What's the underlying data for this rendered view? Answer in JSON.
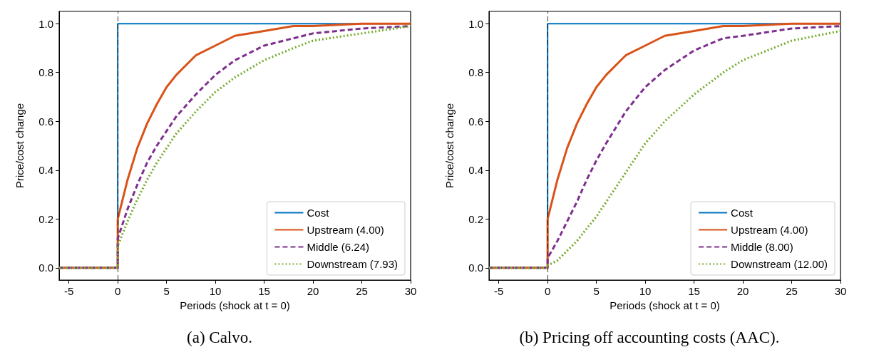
{
  "chart_data": [
    {
      "type": "line",
      "title": "(a) Calvo.",
      "xlabel": "Periods (shock at t = 0)",
      "ylabel": "Price/cost change",
      "xlim": [
        -6,
        30
      ],
      "xticks": [
        -5,
        0,
        5,
        10,
        15,
        20,
        25,
        30
      ],
      "ylim": [
        -0.05,
        1.05
      ],
      "yticks": [
        {
          "value": 0,
          "label": "0.0"
        },
        {
          "value": 0.2,
          "label": "0.2"
        },
        {
          "value": 0.4,
          "label": "0.4"
        },
        {
          "value": 0.6,
          "label": "0.6"
        },
        {
          "value": 0.8,
          "label": "0.8"
        },
        {
          "value": 1,
          "label": "1.0"
        }
      ],
      "grid": false,
      "legend": "bottom right",
      "marker": "none",
      "ref_lines": [
        {
          "axis": "x",
          "value": 0,
          "color": "#000000",
          "line_style": "dashed"
        }
      ],
      "series": [
        {
          "name": "Cost",
          "color": "#0072bd",
          "line_style": "solid",
          "x": [
            -6,
            0,
            0,
            30
          ],
          "values": [
            0,
            0,
            1,
            1
          ]
        },
        {
          "name": "Upstream (4.00)",
          "color": "#d95319",
          "line_style": "solid",
          "x": [
            -6,
            0,
            0,
            1,
            2,
            3,
            4,
            5,
            6,
            8,
            10,
            12,
            15,
            18,
            20,
            25,
            30
          ],
          "values": [
            0,
            0,
            0.2,
            0.36,
            0.49,
            0.59,
            0.67,
            0.74,
            0.79,
            0.87,
            0.91,
            0.95,
            0.97,
            0.99,
            0.99,
            1.0,
            1.0
          ]
        },
        {
          "name": "Middle (6.24)",
          "color": "#7e2f8e",
          "line_style": "dashed",
          "x": [
            -6,
            0,
            0,
            1,
            2,
            3,
            4,
            5,
            6,
            8,
            10,
            12,
            15,
            18,
            20,
            25,
            30
          ],
          "values": [
            0,
            0,
            0.12,
            0.24,
            0.34,
            0.43,
            0.5,
            0.56,
            0.62,
            0.71,
            0.79,
            0.85,
            0.91,
            0.94,
            0.96,
            0.98,
            0.99
          ]
        },
        {
          "name": "Downstream (7.93)",
          "color": "#77ac30",
          "line_style": "dotted",
          "x": [
            -6,
            0,
            0,
            1,
            2,
            3,
            4,
            5,
            6,
            8,
            10,
            12,
            15,
            18,
            20,
            25,
            30
          ],
          "values": [
            0,
            0,
            0.09,
            0.19,
            0.28,
            0.36,
            0.43,
            0.49,
            0.55,
            0.64,
            0.72,
            0.78,
            0.85,
            0.9,
            0.93,
            0.96,
            0.99
          ]
        }
      ]
    },
    {
      "type": "line",
      "title": "(b) Pricing off accounting costs (AAC).",
      "xlabel": "Periods (shock at t = 0)",
      "ylabel": "Price/cost change",
      "xlim": [
        -6,
        30
      ],
      "xticks": [
        -5,
        0,
        5,
        10,
        15,
        20,
        25,
        30
      ],
      "ylim": [
        -0.05,
        1.05
      ],
      "yticks": [
        {
          "value": 0,
          "label": "0.0"
        },
        {
          "value": 0.2,
          "label": "0.2"
        },
        {
          "value": 0.4,
          "label": "0.4"
        },
        {
          "value": 0.6,
          "label": "0.6"
        },
        {
          "value": 0.8,
          "label": "0.8"
        },
        {
          "value": 1,
          "label": "1.0"
        }
      ],
      "grid": false,
      "legend": "bottom right",
      "marker": "none",
      "ref_lines": [
        {
          "axis": "x",
          "value": 0,
          "color": "#000000",
          "line_style": "dashed"
        }
      ],
      "series": [
        {
          "name": "Cost",
          "color": "#0072bd",
          "line_style": "solid",
          "x": [
            -6,
            0,
            0,
            30
          ],
          "values": [
            0,
            0,
            1,
            1
          ]
        },
        {
          "name": "Upstream (4.00)",
          "color": "#d95319",
          "line_style": "solid",
          "x": [
            -6,
            0,
            0,
            1,
            2,
            3,
            4,
            5,
            6,
            8,
            10,
            12,
            15,
            18,
            20,
            25,
            30
          ],
          "values": [
            0,
            0,
            0.2,
            0.36,
            0.49,
            0.59,
            0.67,
            0.74,
            0.79,
            0.87,
            0.91,
            0.95,
            0.97,
            0.99,
            0.99,
            1.0,
            1.0
          ]
        },
        {
          "name": "Middle (8.00)",
          "color": "#7e2f8e",
          "line_style": "dashed",
          "x": [
            -6,
            0,
            0,
            1,
            2,
            3,
            4,
            5,
            6,
            8,
            10,
            12,
            15,
            18,
            20,
            25,
            30
          ],
          "values": [
            0,
            0,
            0.04,
            0.11,
            0.19,
            0.27,
            0.36,
            0.44,
            0.51,
            0.64,
            0.74,
            0.81,
            0.89,
            0.94,
            0.95,
            0.98,
            0.99
          ]
        },
        {
          "name": "Downstream (12.00)",
          "color": "#77ac30",
          "line_style": "dotted",
          "x": [
            -6,
            0,
            0,
            1,
            2,
            3,
            4,
            5,
            6,
            8,
            10,
            12,
            15,
            18,
            20,
            25,
            30
          ],
          "values": [
            0,
            0,
            0.01,
            0.03,
            0.07,
            0.11,
            0.16,
            0.21,
            0.27,
            0.39,
            0.51,
            0.6,
            0.71,
            0.8,
            0.85,
            0.93,
            0.97
          ]
        }
      ]
    }
  ]
}
